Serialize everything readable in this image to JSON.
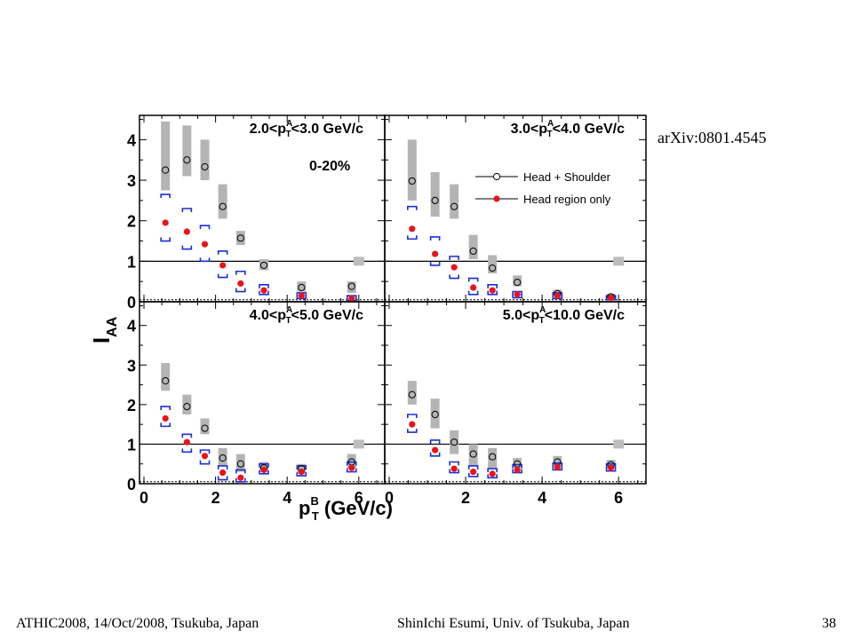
{
  "reference": "arXiv:0801.4545",
  "footer": {
    "left": "ATHIC2008, 14/Oct/2008, Tsukuba, Japan",
    "center": "ShinIchi Esumi, Univ. of Tsukuba, Japan",
    "page": "38"
  },
  "colors": {
    "head_shoulder_marker": "#000000",
    "head_shoulder_syserr": "#b4b4b4",
    "head_only_marker": "#e8141c",
    "head_only_syserr": "#1a2fd8",
    "reference_line": "#000000"
  },
  "chart_data": {
    "type": "scatter",
    "ylabel_main": "I",
    "ylabel_sub": "AA",
    "xlabel_main": "p",
    "xlabel_sup": "B",
    "xlabel_sub": "T",
    "xlabel_rest": " (GeV/c)",
    "xlim": [
      0,
      6.6
    ],
    "ylim": [
      0,
      4.6
    ],
    "xticks": [
      0,
      2,
      4,
      6
    ],
    "yticks": [
      0,
      1,
      2,
      3,
      4
    ],
    "centrality": "0-20%",
    "legend": [
      {
        "label": "Head + Shoulder",
        "marker": "open-circle"
      },
      {
        "label": "Head region only",
        "marker": "filled-circle"
      }
    ],
    "panels": [
      {
        "title": "2.0<p_T^A<3.0 GeV/c",
        "t_pre": "2.0<p",
        "t_sup": "A",
        "t_sub": "T",
        "t_post": "<3.0 GeV/c",
        "head_shoulder": {
          "x": [
            0.6,
            1.2,
            1.7,
            2.2,
            2.7,
            3.35,
            4.4,
            5.8
          ],
          "y": [
            3.25,
            3.5,
            3.33,
            2.35,
            1.57,
            0.9,
            0.35,
            0.38
          ],
          "sys_low": [
            2.75,
            3.1,
            3.0,
            2.05,
            1.4,
            0.78,
            0.25,
            0.22
          ],
          "sys_high": [
            4.45,
            4.35,
            4.0,
            2.9,
            1.75,
            1.05,
            0.5,
            0.5
          ]
        },
        "head_only": {
          "x": [
            0.6,
            1.2,
            1.7,
            2.2,
            2.7,
            3.35,
            4.4,
            5.8
          ],
          "y": [
            1.95,
            1.73,
            1.42,
            0.9,
            0.45,
            0.28,
            0.15,
            0.08
          ],
          "sys_low": [
            1.5,
            1.3,
            1.0,
            0.6,
            0.25,
            0.18,
            0.08,
            0.03
          ],
          "sys_high": [
            2.65,
            2.3,
            1.88,
            1.25,
            0.75,
            0.42,
            0.22,
            0.15
          ]
        }
      },
      {
        "title": "3.0<p_T^A<4.0 GeV/c",
        "t_pre": "3.0<p",
        "t_sup": "A",
        "t_sub": "T",
        "t_post": "<4.0 GeV/c",
        "head_shoulder": {
          "x": [
            0.6,
            1.2,
            1.7,
            2.2,
            2.7,
            3.35,
            4.4,
            5.8
          ],
          "y": [
            2.98,
            2.5,
            2.35,
            1.25,
            0.83,
            0.48,
            0.2,
            0.12
          ],
          "sys_low": [
            2.5,
            2.1,
            2.05,
            1.05,
            0.7,
            0.38,
            0.12,
            0.05
          ],
          "sys_high": [
            4.0,
            3.2,
            2.9,
            1.65,
            1.15,
            0.65,
            0.3,
            0.2
          ]
        },
        "head_only": {
          "x": [
            0.6,
            1.2,
            1.7,
            2.2,
            2.7,
            3.35,
            4.4,
            5.8
          ],
          "y": [
            1.8,
            1.18,
            0.85,
            0.35,
            0.28,
            0.18,
            0.15,
            0.1
          ],
          "sys_low": [
            1.55,
            0.9,
            0.58,
            0.18,
            0.18,
            0.1,
            0.08,
            0.05
          ],
          "sys_high": [
            2.35,
            1.6,
            1.12,
            0.58,
            0.42,
            0.25,
            0.22,
            0.15
          ]
        }
      },
      {
        "title": "4.0<p_T^A<5.0 GeV/c",
        "t_pre": "4.0<p",
        "t_sup": "A",
        "t_sub": "T",
        "t_post": "<5.0 GeV/c",
        "head_shoulder": {
          "x": [
            0.6,
            1.2,
            1.7,
            2.2,
            2.7,
            3.35,
            4.4,
            5.8
          ],
          "y": [
            2.6,
            1.95,
            1.4,
            0.65,
            0.5,
            0.4,
            0.38,
            0.55
          ],
          "sys_low": [
            2.35,
            1.75,
            1.25,
            0.45,
            0.3,
            0.3,
            0.25,
            0.4
          ],
          "sys_high": [
            3.05,
            2.25,
            1.65,
            0.9,
            0.75,
            0.55,
            0.5,
            0.75
          ]
        },
        "head_only": {
          "x": [
            0.6,
            1.2,
            1.7,
            2.2,
            2.7,
            3.35,
            4.4,
            5.8
          ],
          "y": [
            1.65,
            1.05,
            0.7,
            0.28,
            0.15,
            0.35,
            0.3,
            0.4
          ],
          "sys_low": [
            1.45,
            0.8,
            0.5,
            0.1,
            0.05,
            0.25,
            0.2,
            0.3
          ],
          "sys_high": [
            1.95,
            1.25,
            0.85,
            0.45,
            0.35,
            0.5,
            0.45,
            0.55
          ]
        }
      },
      {
        "title": "5.0<p_T^A<10.0 GeV/c",
        "t_pre": "5.0<p",
        "t_sup": "A",
        "t_sub": "T",
        "t_post": "<10.0 GeV/c",
        "head_shoulder": {
          "x": [
            0.6,
            1.2,
            1.7,
            2.2,
            2.7,
            3.35,
            4.4,
            5.8
          ],
          "y": [
            2.25,
            1.75,
            1.05,
            0.75,
            0.68,
            0.5,
            0.55,
            0.48
          ],
          "sys_low": [
            2.0,
            1.4,
            0.75,
            0.45,
            0.4,
            0.4,
            0.45,
            0.38
          ],
          "sys_high": [
            2.6,
            2.15,
            1.35,
            1.0,
            0.9,
            0.65,
            0.7,
            0.6
          ]
        },
        "head_only": {
          "x": [
            0.6,
            1.2,
            1.7,
            2.2,
            2.7,
            3.35,
            4.4,
            5.8
          ],
          "y": [
            1.5,
            0.85,
            0.38,
            0.3,
            0.25,
            0.35,
            0.42,
            0.4
          ],
          "sys_low": [
            1.3,
            0.7,
            0.28,
            0.18,
            0.15,
            0.28,
            0.35,
            0.32
          ],
          "sys_high": [
            1.75,
            1.1,
            0.55,
            0.45,
            0.38,
            0.48,
            0.52,
            0.5
          ]
        }
      }
    ],
    "reference_lines": [
      {
        "y": 1.0,
        "style": "solid"
      },
      {
        "y": 0.05,
        "style": "dotted"
      }
    ],
    "global_syserr_box": {
      "x": 6.0,
      "y": 1.0,
      "label": ""
    }
  }
}
